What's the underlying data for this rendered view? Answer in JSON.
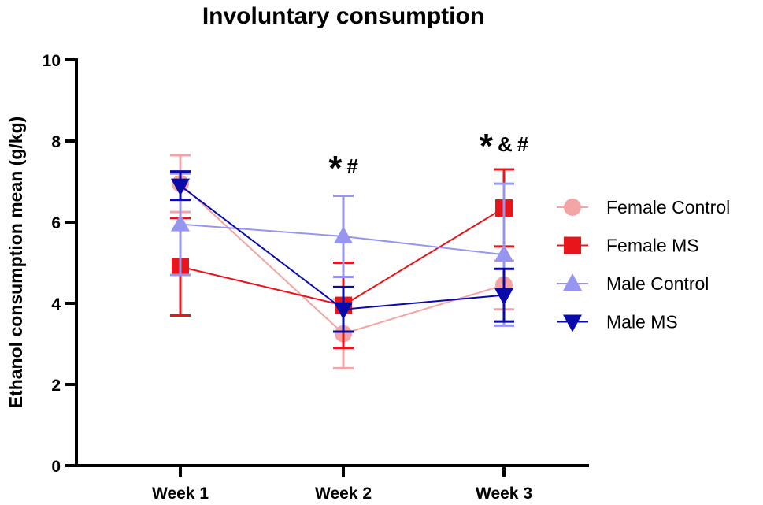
{
  "chart_data": {
    "type": "line",
    "title": "Involuntary consumption",
    "xlabel": "",
    "ylabel": "Ethanol consumption mean (g/kg)",
    "categories": [
      "Week 1",
      "Week 2",
      "Week 3"
    ],
    "ylim": [
      0,
      10
    ],
    "yticks": [
      0,
      2,
      4,
      6,
      8,
      10
    ],
    "legend_position": "right",
    "series": [
      {
        "name": "Female Control",
        "marker": "circle",
        "color": "#F4A4A4",
        "values": [
          6.95,
          3.25,
          4.45
        ],
        "errors": [
          0.7,
          0.85,
          0.6
        ]
      },
      {
        "name": "Female MS",
        "marker": "square",
        "color": "#E8161B",
        "values": [
          4.9,
          3.95,
          6.35
        ],
        "errors": [
          1.2,
          1.05,
          0.95
        ]
      },
      {
        "name": "Male Control",
        "marker": "triangle-up",
        "color": "#9696F0",
        "values": [
          5.95,
          5.65,
          5.2
        ],
        "errors": [
          1.25,
          1.0,
          1.75
        ]
      },
      {
        "name": "Male MS",
        "marker": "triangle-down",
        "color": "#0A0AAA",
        "values": [
          6.9,
          3.85,
          4.2
        ],
        "errors": [
          0.35,
          0.55,
          0.65
        ]
      }
    ],
    "annotations": [
      {
        "category": "Week 2",
        "y": 7.2,
        "parts": [
          "*",
          "#"
        ]
      },
      {
        "category": "Week 3",
        "y": 7.75,
        "parts": [
          "*",
          "&",
          "#"
        ]
      }
    ]
  }
}
